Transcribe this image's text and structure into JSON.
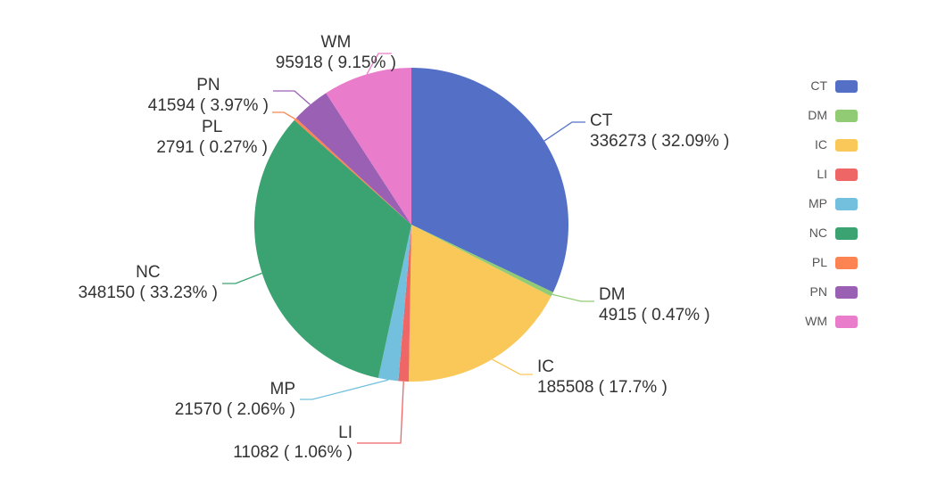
{
  "chart_data": {
    "type": "pie",
    "title": "",
    "legend_position": "right",
    "label_format": "{name}\n{value} ( {pct} )",
    "slices": [
      {
        "name": "CT",
        "value": 336273,
        "pct": "32.09%",
        "color": "#5470c6"
      },
      {
        "name": "DM",
        "value": 4915,
        "pct": "0.47%",
        "color": "#91cc75"
      },
      {
        "name": "IC",
        "value": 185508,
        "pct": "17.7%",
        "color": "#fac858"
      },
      {
        "name": "LI",
        "value": 11082,
        "pct": "1.06%",
        "color": "#ee6666"
      },
      {
        "name": "MP",
        "value": 21570,
        "pct": "2.06%",
        "color": "#73c0de"
      },
      {
        "name": "NC",
        "value": 348150,
        "pct": "33.23%",
        "color": "#3ba272"
      },
      {
        "name": "PL",
        "value": 2791,
        "pct": "0.27%",
        "color": "#fc8452"
      },
      {
        "name": "PN",
        "value": 41594,
        "pct": "3.97%",
        "color": "#9a60b4"
      },
      {
        "name": "WM",
        "value": 95918,
        "pct": "9.15%",
        "color": "#ea7ccc"
      }
    ],
    "legend_items": [
      "CT",
      "DM",
      "IC",
      "LI",
      "MP",
      "NC",
      "PL",
      "PN",
      "WM"
    ]
  }
}
